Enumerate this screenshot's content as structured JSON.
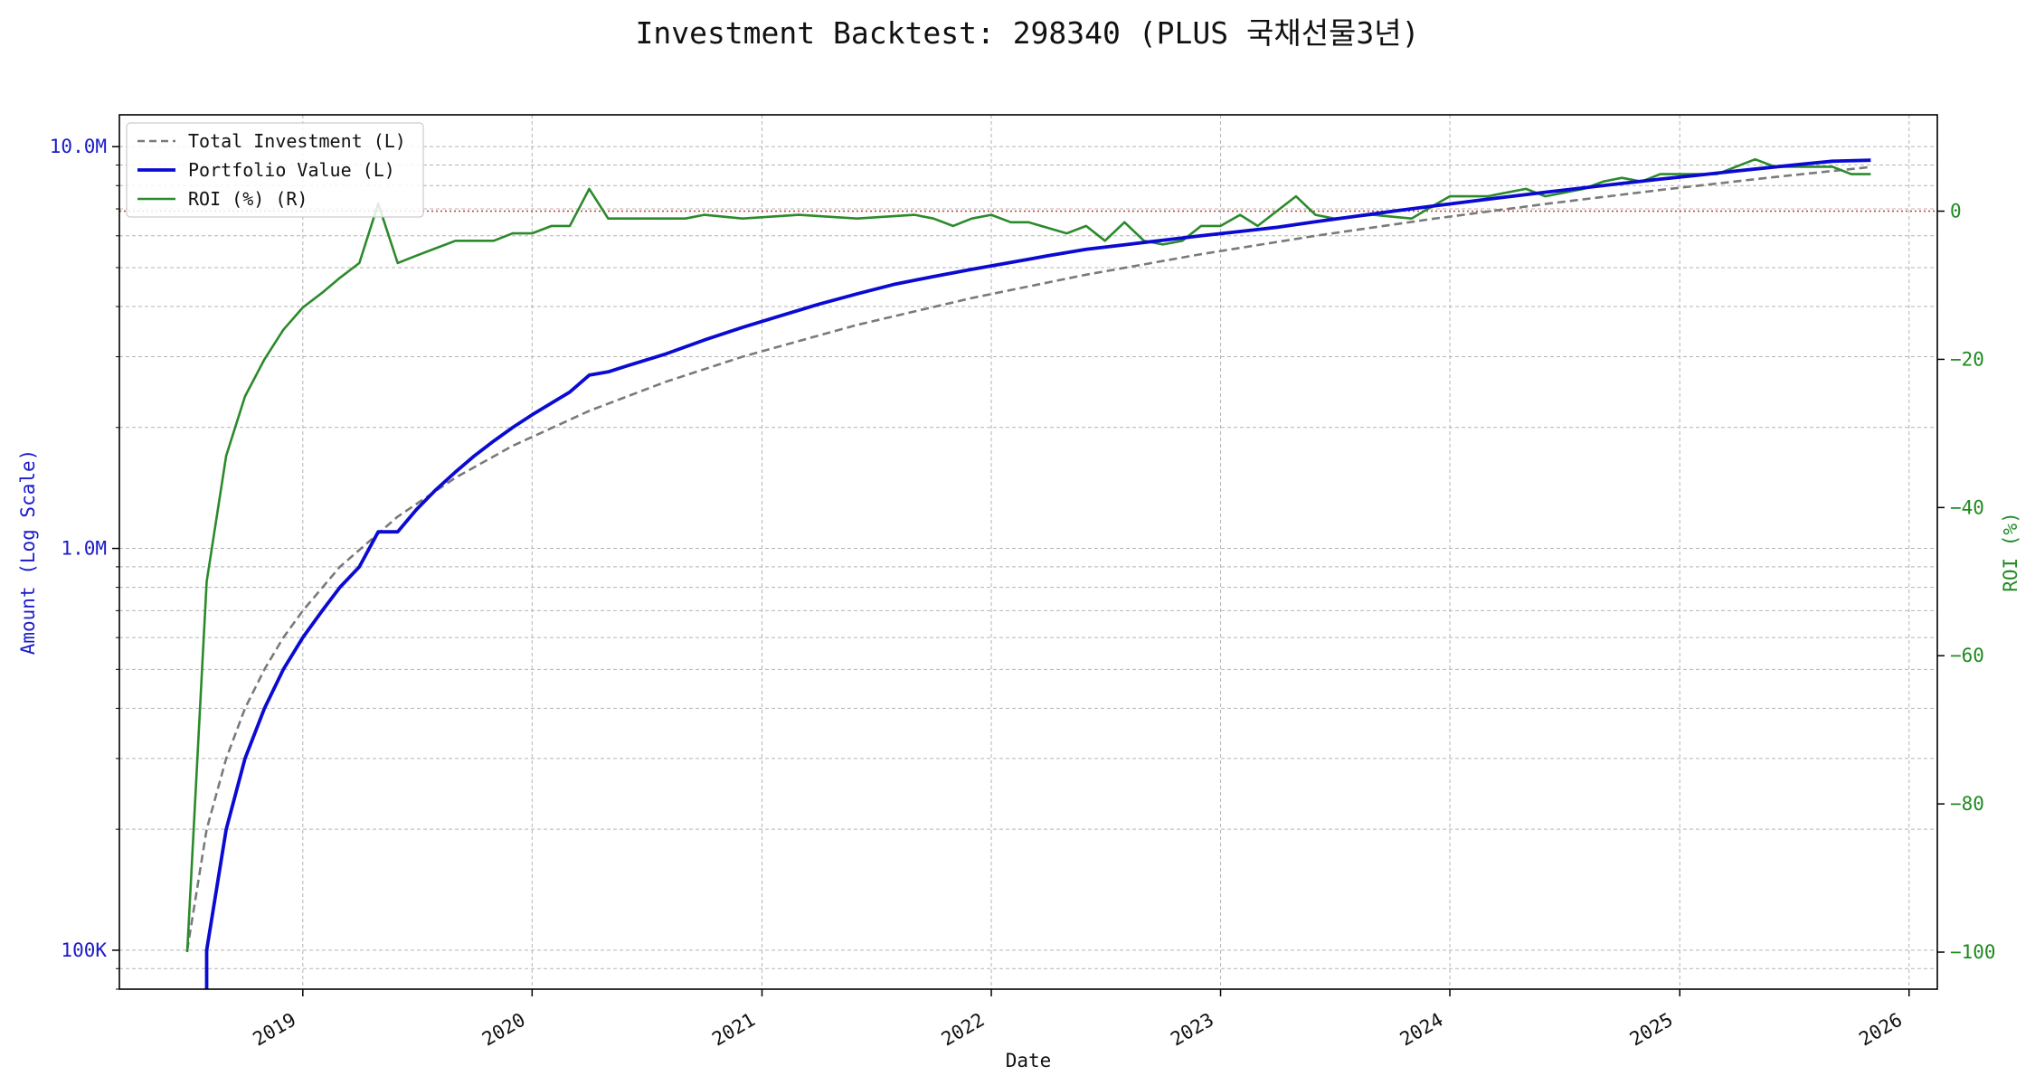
{
  "chart_data": {
    "type": "line",
    "title": "Investment Backtest: 298340 (PLUS 국채선물3년)",
    "xlabel": "Date",
    "ylabel_left": "Amount (Log Scale)",
    "ylabel_right": "ROI (%)",
    "x_range": [
      "2018-03-15",
      "2026-02-15"
    ],
    "x_ticks": [
      "2019",
      "2020",
      "2021",
      "2022",
      "2023",
      "2024",
      "2025",
      "2026"
    ],
    "y_left": {
      "scale": "log",
      "range": [
        80000,
        12000000
      ],
      "tick_values": [
        100000,
        1000000,
        10000000
      ],
      "tick_labels": [
        "100K",
        "1.0M",
        "10.0M"
      ]
    },
    "y_right": {
      "scale": "linear",
      "range": [
        -105,
        13
      ],
      "tick_values": [
        -100,
        -80,
        -60,
        -40,
        -20,
        0
      ],
      "tick_labels": [
        "−100",
        "−80",
        "−60",
        "−40",
        "−20",
        "0"
      ]
    },
    "reference_line": {
      "axis": "right",
      "value": 0,
      "style": "dotted",
      "color": "#c0392b"
    },
    "grid": true,
    "legend_position": "top-left",
    "colors": {
      "total_investment": "#7a7a7a",
      "portfolio_value": "#0a0ad2",
      "roi": "#2b8a2b",
      "left_axis": "#1a1acc",
      "right_axis": "#1f8a1f"
    },
    "series": [
      {
        "name": "Total Investment (L)",
        "axis": "left",
        "style": "dashed",
        "x": [
          "2018-07-01",
          "2018-08-01",
          "2018-09-01",
          "2018-10-01",
          "2018-11-01",
          "2018-12-01",
          "2019-01-01",
          "2019-03-01",
          "2019-06-01",
          "2019-09-01",
          "2019-12-01",
          "2020-04-01",
          "2020-08-01",
          "2020-12-01",
          "2021-06-01",
          "2021-12-01",
          "2022-06-01",
          "2022-12-01",
          "2023-06-01",
          "2023-12-01",
          "2024-06-01",
          "2024-12-01",
          "2025-06-01",
          "2025-11-01"
        ],
        "y": [
          100000,
          200000,
          300000,
          400000,
          500000,
          600000,
          700000,
          900000,
          1200000,
          1500000,
          1800000,
          2200000,
          2600000,
          3000000,
          3600000,
          4200000,
          4800000,
          5400000,
          6000000,
          6600000,
          7200000,
          7800000,
          8400000,
          8900000
        ]
      },
      {
        "name": "Portfolio Value (L)",
        "axis": "left",
        "style": "solid",
        "x": [
          "2018-08-01",
          "2018-08-01",
          "2018-09-01",
          "2018-10-01",
          "2018-11-01",
          "2018-12-01",
          "2019-01-01",
          "2019-02-01",
          "2019-03-01",
          "2019-04-01",
          "2019-05-01",
          "2019-06-01",
          "2019-07-01",
          "2019-08-01",
          "2019-09-01",
          "2019-10-01",
          "2019-11-01",
          "2019-12-01",
          "2020-01-01",
          "2020-02-01",
          "2020-03-01",
          "2020-04-01",
          "2020-05-01",
          "2020-06-01",
          "2020-08-01",
          "2020-10-01",
          "2020-12-01",
          "2021-02-01",
          "2021-04-01",
          "2021-06-01",
          "2021-08-01",
          "2021-10-01",
          "2021-12-01",
          "2022-02-01",
          "2022-04-01",
          "2022-06-01",
          "2022-08-01",
          "2022-10-01",
          "2022-12-01",
          "2023-02-01",
          "2023-04-01",
          "2023-06-01",
          "2023-08-01",
          "2023-10-01",
          "2023-12-01",
          "2024-02-01",
          "2024-04-01",
          "2024-06-01",
          "2024-08-01",
          "2024-10-01",
          "2024-12-01",
          "2025-02-01",
          "2025-04-01",
          "2025-06-01",
          "2025-08-01",
          "2025-09-01",
          "2025-11-01"
        ],
        "y": [
          80000,
          100000,
          200000,
          300000,
          400000,
          500000,
          600000,
          700000,
          800000,
          900000,
          1100000,
          1100000,
          1250000,
          1400000,
          1550000,
          1700000,
          1850000,
          2000000,
          2150000,
          2300000,
          2450000,
          2700000,
          2750000,
          2850000,
          3050000,
          3300000,
          3550000,
          3800000,
          4050000,
          4300000,
          4550000,
          4750000,
          4950000,
          5150000,
          5350000,
          5550000,
          5700000,
          5850000,
          6000000,
          6150000,
          6300000,
          6500000,
          6700000,
          6900000,
          7100000,
          7300000,
          7500000,
          7700000,
          7900000,
          8100000,
          8300000,
          8500000,
          8700000,
          8900000,
          9100000,
          9200000,
          9250000
        ]
      },
      {
        "name": "ROI (%) (R)",
        "axis": "right",
        "style": "solid",
        "x": [
          "2018-07-01",
          "2018-08-01",
          "2018-09-01",
          "2018-10-01",
          "2018-11-01",
          "2018-12-01",
          "2019-01-01",
          "2019-02-01",
          "2019-03-01",
          "2019-04-01",
          "2019-05-01",
          "2019-06-01",
          "2019-07-01",
          "2019-08-01",
          "2019-09-01",
          "2019-10-01",
          "2019-11-01",
          "2019-12-01",
          "2020-01-01",
          "2020-02-01",
          "2020-03-01",
          "2020-04-01",
          "2020-05-01",
          "2020-06-01",
          "2020-08-01",
          "2020-09-01",
          "2020-10-01",
          "2020-12-01",
          "2021-03-01",
          "2021-06-01",
          "2021-09-01",
          "2021-10-01",
          "2021-11-01",
          "2021-12-01",
          "2022-01-01",
          "2022-02-01",
          "2022-03-01",
          "2022-05-01",
          "2022-06-01",
          "2022-07-01",
          "2022-08-01",
          "2022-09-01",
          "2022-10-01",
          "2022-11-01",
          "2022-12-01",
          "2023-01-01",
          "2023-02-01",
          "2023-03-01",
          "2023-05-01",
          "2023-06-01",
          "2023-07-01",
          "2023-09-01",
          "2023-11-01",
          "2023-12-01",
          "2024-01-01",
          "2024-03-01",
          "2024-05-01",
          "2024-06-01",
          "2024-08-01",
          "2024-09-01",
          "2024-10-01",
          "2024-11-01",
          "2024-12-01",
          "2025-01-01",
          "2025-03-01",
          "2025-05-01",
          "2025-06-01",
          "2025-08-01",
          "2025-09-01",
          "2025-10-01",
          "2025-11-01"
        ],
        "y": [
          -100,
          -50,
          -33,
          -25,
          -20,
          -16,
          -13,
          -11,
          -9,
          -7,
          1,
          -7,
          -6,
          -5,
          -4,
          -4,
          -4,
          -3,
          -3,
          -2,
          -2,
          3,
          -1,
          -1,
          -1,
          -1,
          -0.5,
          -1,
          -0.5,
          -1,
          -0.5,
          -1,
          -2,
          -1,
          -0.5,
          -1.5,
          -1.5,
          -3,
          -2,
          -4,
          -1.5,
          -4,
          -4.5,
          -4,
          -2,
          -2,
          -0.5,
          -2,
          2,
          -0.5,
          -1,
          -0.5,
          -1,
          0.5,
          2,
          2,
          3,
          2,
          3,
          4,
          4.5,
          4,
          5,
          5,
          5,
          7,
          6,
          6,
          6,
          5,
          5
        ]
      }
    ]
  }
}
